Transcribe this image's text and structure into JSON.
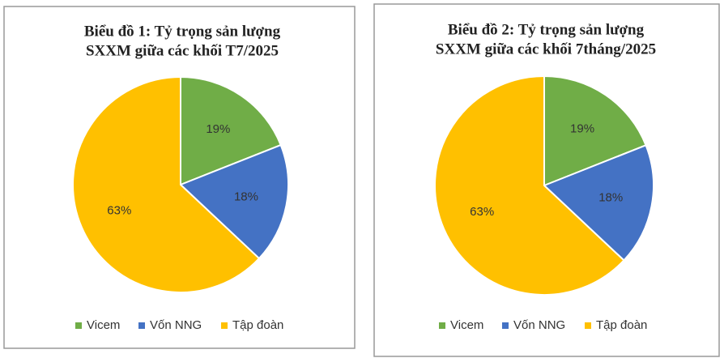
{
  "chart_data": [
    {
      "type": "pie",
      "title": [
        "Biểu đồ 1: Tỷ trọng sản lượng",
        "SXXM giữa các khối  T7/2025"
      ],
      "categories": [
        "Vicem",
        "Vốn NNG",
        "Tập đoàn"
      ],
      "values": [
        19,
        18,
        63
      ],
      "value_labels": [
        "19%",
        "18%",
        "63%"
      ],
      "colors": [
        "#70ad47",
        "#4472c4",
        "#ffc000"
      ],
      "legend": "bottom"
    },
    {
      "type": "pie",
      "title": [
        "Biểu đồ 2: Tỷ trọng sản lượng",
        "SXXM giữa các khối 7tháng/2025"
      ],
      "categories": [
        "Vicem",
        "Vốn NNG",
        "Tập đoàn"
      ],
      "values": [
        19,
        18,
        63
      ],
      "value_labels": [
        "19%",
        "18%",
        "63%"
      ],
      "colors": [
        "#70ad47",
        "#4472c4",
        "#ffc000"
      ],
      "legend": "bottom"
    }
  ]
}
